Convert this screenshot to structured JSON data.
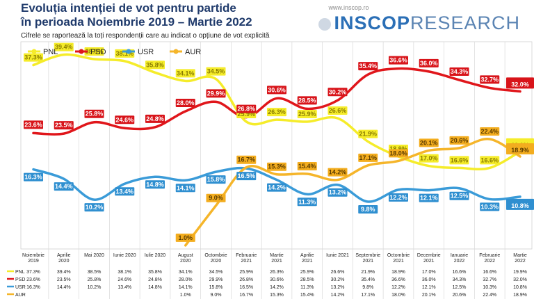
{
  "header": {
    "title_line1": "Evoluția intenției de vot pentru partide",
    "title_line2": "în perioada Noiembrie 2019 – Martie 2022",
    "note": "Cifrele se raportează la toți respondenții care au indicat o opțiune de vot explicită"
  },
  "brand": {
    "url": "www.inscop.ro",
    "name_bold": "INSCOP",
    "name_light": "RESEARCH"
  },
  "colors": {
    "PNL": "#f5ec2a",
    "PSD": "#e0161b",
    "USR": "#3a9bd8",
    "AUR": "#f5b52a",
    "label_PNL": "#f5ec2a",
    "label_PSD": "#d8141a",
    "label_USR": "#2f8fd0",
    "label_AUR": "#f3ad1f"
  },
  "chart_data": {
    "type": "line",
    "categories": [
      "Noiembrie 2019",
      "Aprilie 2020",
      "Mai 2020",
      "Iunie 2020",
      "Iulie 2020",
      "August 2020",
      "Octombrie 2020",
      "Februarie 2021",
      "Martie 2021",
      "Aprilie 2021",
      "Iunie 2021",
      "Septembrie 2021",
      "Octombrie 2021",
      "Decembrie 2021",
      "Ianuarie 2022",
      "Februarie 2022",
      "Martie 2022"
    ],
    "series": [
      {
        "name": "PNL",
        "values": [
          37.3,
          39.4,
          38.5,
          38.1,
          35.8,
          34.1,
          34.5,
          25.9,
          26.3,
          25.9,
          26.6,
          21.9,
          18.9,
          17.0,
          16.6,
          16.6,
          19.9
        ],
        "labels": [
          "37.3%",
          "39.4%",
          "38.5%",
          "38.1%",
          "35.8%",
          "34.1%",
          "34.5%",
          "25.9%",
          "26.3%",
          "25.9%",
          "26.6%",
          "21.9%",
          "18.9%",
          "17.0%",
          "16.6%",
          "16.6%",
          "19.9%"
        ]
      },
      {
        "name": "PSD",
        "values": [
          23.6,
          23.5,
          25.8,
          24.6,
          24.8,
          28.0,
          29.9,
          26.8,
          30.6,
          28.5,
          30.2,
          35.4,
          36.6,
          36.0,
          34.3,
          32.7,
          32.0
        ],
        "labels": [
          "23.6%",
          "23.5%",
          "25.8%",
          "24.6%",
          "24.8%",
          "28.0%",
          "29.9%",
          "26.8%",
          "30.6%",
          "28.5%",
          "30.2%",
          "35.4%",
          "36.6%",
          "36.0%",
          "34.3%",
          "32.7%",
          "32.0%"
        ]
      },
      {
        "name": "USR",
        "values": [
          16.3,
          14.4,
          10.2,
          13.4,
          14.8,
          14.1,
          15.8,
          16.5,
          14.2,
          11.3,
          13.2,
          9.8,
          12.2,
          12.1,
          12.5,
          10.3,
          10.8
        ],
        "labels": [
          "16.3%",
          "14.4%",
          "10.2%",
          "13.4%",
          "14.8%",
          "14.1%",
          "15.8%",
          "16.5%",
          "14.2%",
          "11.3%",
          "13.2%",
          "9.8%",
          "12.2%",
          "12.1%",
          "12.5%",
          "10.3%",
          "10.8%"
        ]
      },
      {
        "name": "AUR",
        "values": [
          null,
          null,
          null,
          null,
          null,
          1.0,
          9.0,
          16.7,
          15.3,
          15.4,
          14.2,
          17.1,
          18.0,
          20.1,
          20.6,
          22.4,
          18.9
        ],
        "labels": [
          "",
          "",
          "",
          "",
          "",
          "1.0%",
          "9.0%",
          "16.7%",
          "15.3%",
          "15.4%",
          "14.2%",
          "17.1%",
          "18.0%",
          "20.1%",
          "20.6%",
          "22.4%",
          "18.9%"
        ]
      }
    ],
    "table_rows": [
      {
        "name": "PNL",
        "cells": [
          "37.3%",
          "39.4%",
          "38.5%",
          "38.1%",
          "35.8%",
          "34.1%",
          "34.5%",
          "25.9%",
          "26.3%",
          "25.9%",
          "26.6%",
          "21.9%",
          "18.9%",
          "17.0%",
          "16.6%",
          "16.6%",
          "19.9%"
        ]
      },
      {
        "name": "PSD",
        "cells": [
          "23.6%",
          "23.5%",
          "25.8%",
          "24.6%",
          "24.8%",
          "28.0%",
          "29.9%",
          "26.8%",
          "30.6%",
          "28.5%",
          "30.2%",
          "35.4%",
          "36.6%",
          "36.0%",
          "34.3%",
          "32.7%",
          "32.0%"
        ]
      },
      {
        "name": "USR",
        "cells": [
          "16.3%",
          "14.4%",
          "10.2%",
          "13.4%",
          "14.8%",
          "14.1%",
          "15.8%",
          "16.5%",
          "14.2%",
          "11.3%",
          "13.2%",
          "9.8%",
          "12.2%",
          "12.1%",
          "12.5%",
          "10.3%",
          "10.8%"
        ]
      },
      {
        "name": "AUR",
        "cells": [
          "",
          "",
          "",
          "",
          "",
          "1.0%",
          "9.0%",
          "16.7%",
          "15.3%",
          "15.4%",
          "14.2%",
          "17.1%",
          "18.0%",
          "20.1%",
          "20.6%",
          "22.4%",
          "18.9%"
        ]
      }
    ],
    "legend": [
      "PNL",
      "PSD",
      "USR",
      "AUR"
    ],
    "legend_position": "top-left",
    "ylim": [
      0,
      42
    ],
    "grid": true
  }
}
